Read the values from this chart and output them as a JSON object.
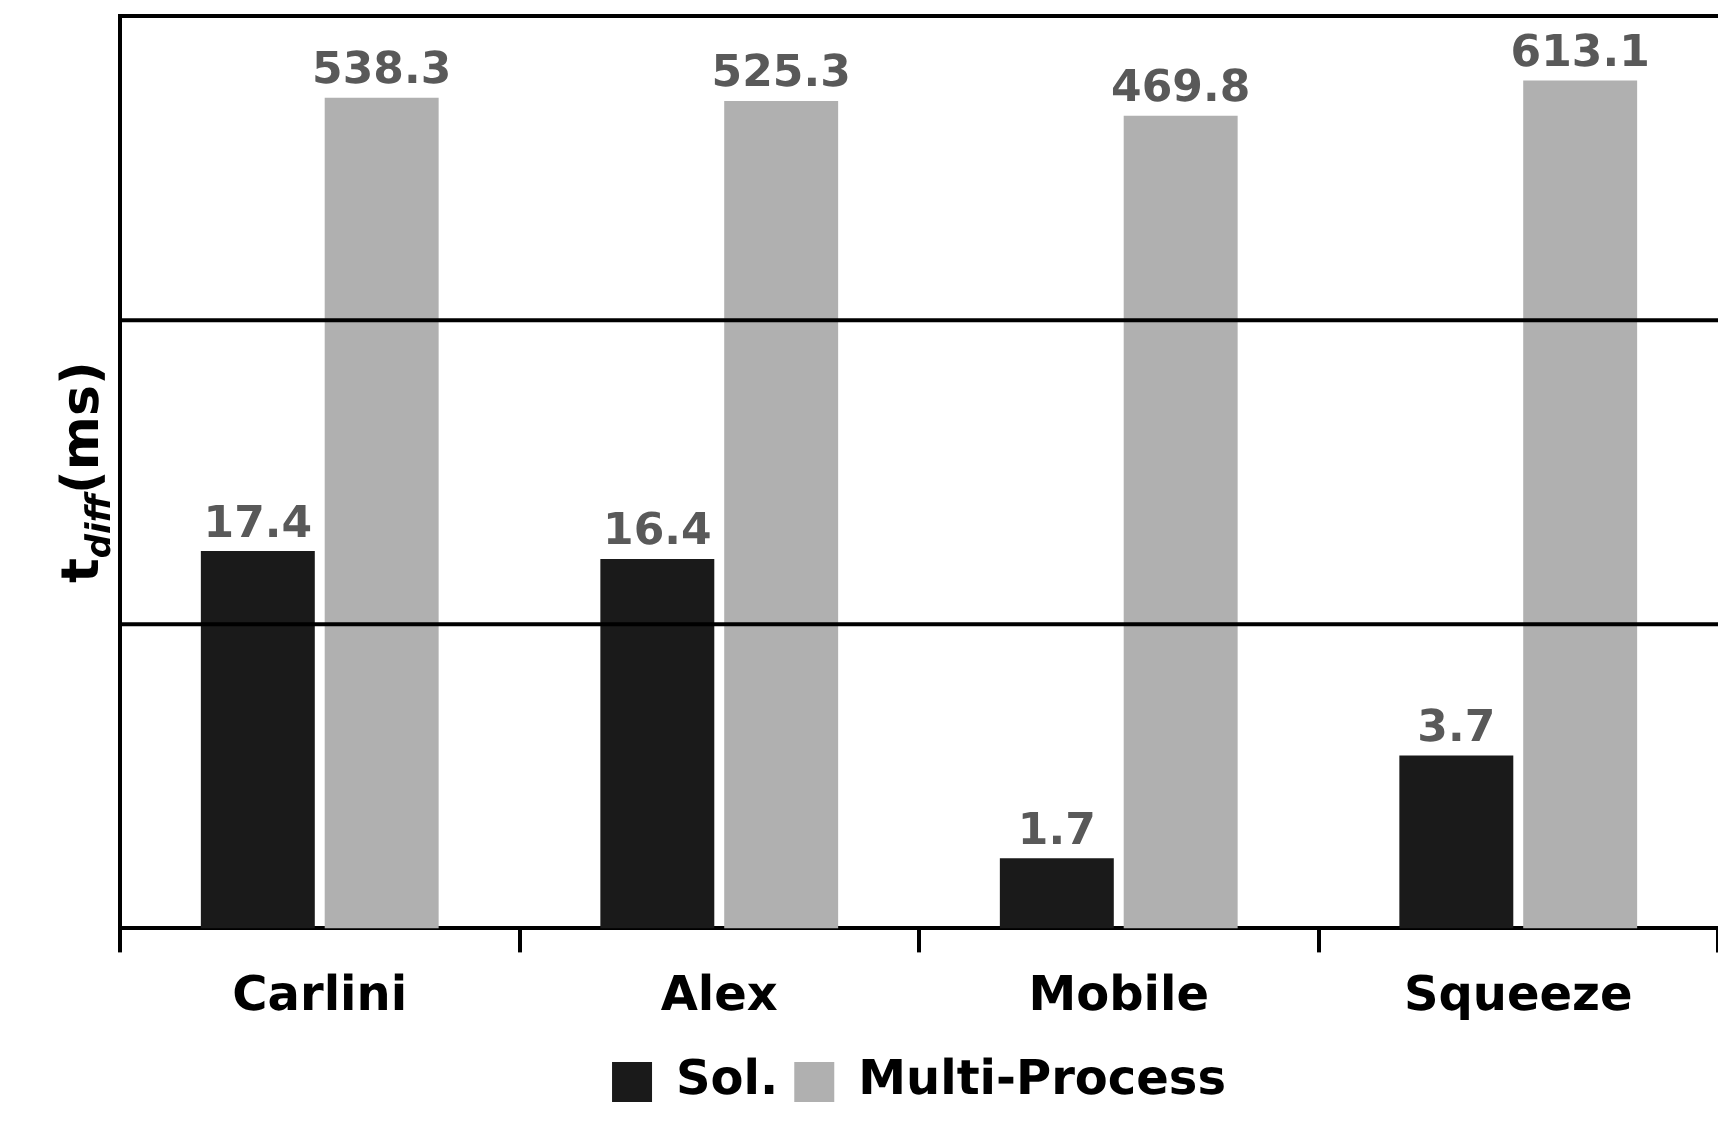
{
  "chart_data": {
    "type": "bar",
    "ylabel": "t$_{diff}$(ms)",
    "categories": [
      "Carlini",
      "Alex",
      "Mobile",
      "Squeeze"
    ],
    "series": [
      {
        "name": "Sol.",
        "color": "#1a1a1a",
        "values": [
          17.4,
          16.4,
          1.7,
          3.7
        ]
      },
      {
        "name": "Multi-Process",
        "color": "#b0b0b0",
        "values": [
          538.3,
          525.3,
          469.8,
          613.1
        ]
      }
    ],
    "log": "y",
    "ylim": [
      1,
      1000
    ],
    "ref_lines": [
      {
        "axis": "y",
        "value": 10,
        "color": "#000000"
      },
      {
        "axis": "y",
        "value": 100,
        "color": "#000000"
      },
      {
        "axis": "y",
        "value": 1000,
        "color": "#000000"
      }
    ],
    "tick_labels": "x",
    "data_labels": true,
    "legend": "bottom"
  }
}
